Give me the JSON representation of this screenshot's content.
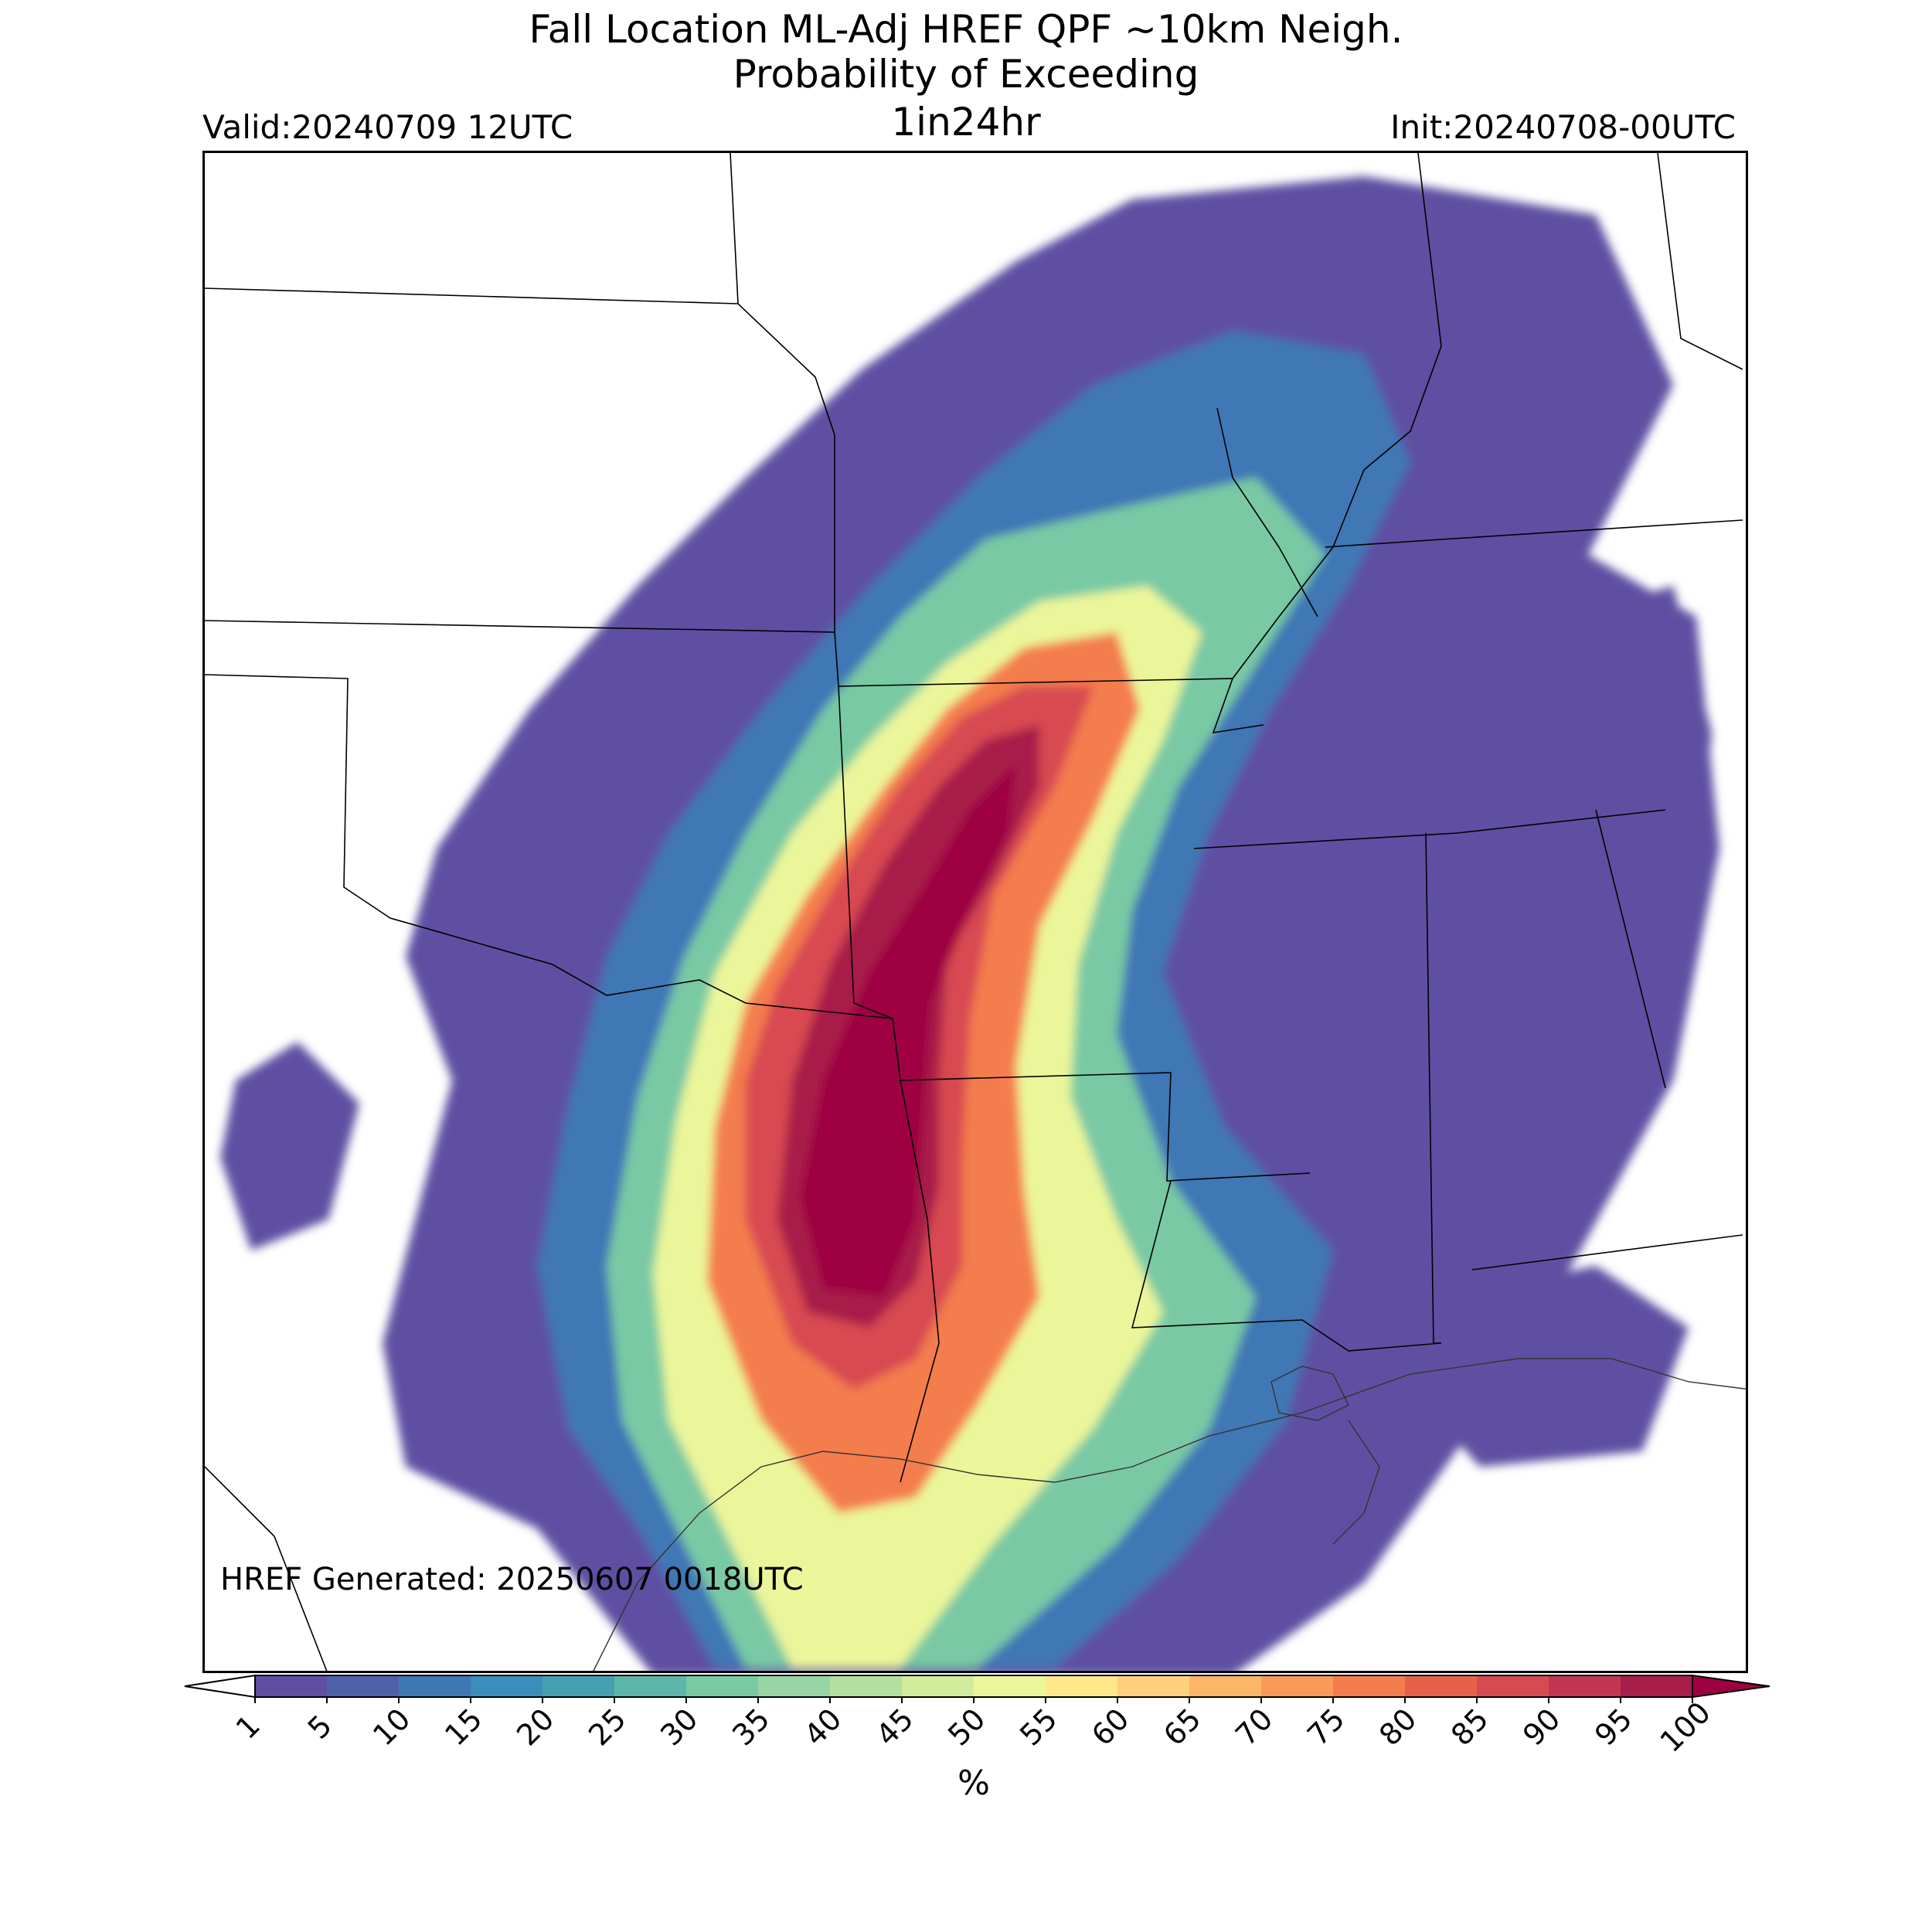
{
  "title": {
    "line1": "Fall Location ML-Adj HREF QPF ~10km Neigh.",
    "line2": "Probability of Exceeding",
    "line3": "1in24hr"
  },
  "valid_label": "Valid:20240709 12UTC",
  "init_label": "Init:20240708-00UTC",
  "generated_label": "HREF Generated: 20250607 0018UTC",
  "colorbar": {
    "unit": "%",
    "ticks": [
      "1",
      "5",
      "10",
      "15",
      "20",
      "25",
      "30",
      "35",
      "40",
      "45",
      "50",
      "55",
      "60",
      "65",
      "70",
      "75",
      "80",
      "85",
      "90",
      "95",
      "100"
    ],
    "colors": [
      "#5e4fa2",
      "#4f61aa",
      "#3f77b5",
      "#3b8dbb",
      "#479fb3",
      "#5cb6aa",
      "#79c9a4",
      "#98d5a4",
      "#b4e09f",
      "#d2ec9d",
      "#ebf69a",
      "#fee88b",
      "#fed07e",
      "#fdb567",
      "#fa9a58",
      "#f47d4d",
      "#e6604a",
      "#d84a51",
      "#c33651",
      "#a81e4a"
    ],
    "over_color": "#9e0142",
    "under_color": "#ffffff"
  }
}
